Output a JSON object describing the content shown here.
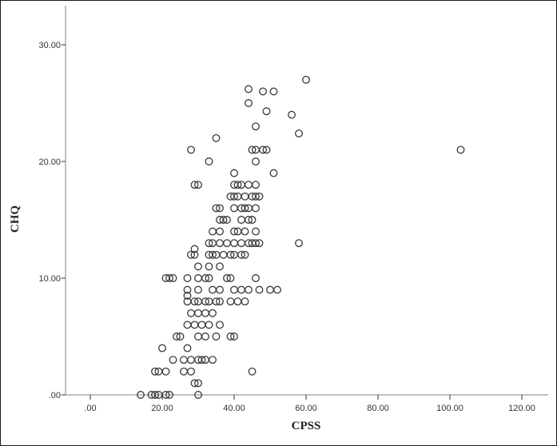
{
  "chart_data": {
    "type": "scatter",
    "title": "",
    "xlabel": "CPSS",
    "ylabel": "CHQ",
    "xlim": [
      -5,
      126
    ],
    "ylim": [
      0,
      33
    ],
    "grid": false,
    "legend": null,
    "x_ticks": [
      0,
      20,
      40,
      60,
      80,
      100,
      120
    ],
    "x_tick_labels": [
      ".00",
      "20.00",
      "40.00",
      "60.00",
      "80.00",
      "100.00",
      "120.00"
    ],
    "y_ticks": [
      0,
      10,
      20,
      30
    ],
    "y_tick_labels": [
      ".00",
      "10.00",
      "20.00",
      "30.00"
    ],
    "marker": "open-circle",
    "points": [
      [
        14,
        0
      ],
      [
        17,
        0
      ],
      [
        18,
        0
      ],
      [
        19,
        0
      ],
      [
        21,
        0
      ],
      [
        22,
        0
      ],
      [
        30,
        0
      ],
      [
        18,
        2
      ],
      [
        19,
        2
      ],
      [
        21,
        2
      ],
      [
        26,
        2
      ],
      [
        28,
        2
      ],
      [
        29,
        1
      ],
      [
        30,
        1
      ],
      [
        45,
        2
      ],
      [
        23,
        3
      ],
      [
        26,
        3
      ],
      [
        28,
        3
      ],
      [
        30,
        3
      ],
      [
        31,
        3
      ],
      [
        32,
        3
      ],
      [
        34,
        3
      ],
      [
        20,
        4
      ],
      [
        27,
        4
      ],
      [
        30,
        5
      ],
      [
        32,
        5
      ],
      [
        24,
        5
      ],
      [
        25,
        5
      ],
      [
        35,
        5
      ],
      [
        39,
        5
      ],
      [
        40,
        5
      ],
      [
        27,
        6
      ],
      [
        29,
        6
      ],
      [
        31,
        6
      ],
      [
        33,
        6
      ],
      [
        36,
        6
      ],
      [
        28,
        7
      ],
      [
        30,
        7
      ],
      [
        32,
        7
      ],
      [
        34,
        7
      ],
      [
        27,
        8
      ],
      [
        29,
        8
      ],
      [
        30,
        8
      ],
      [
        32,
        8
      ],
      [
        33,
        8
      ],
      [
        35,
        8
      ],
      [
        36,
        8
      ],
      [
        39,
        8
      ],
      [
        41,
        8
      ],
      [
        43,
        8
      ],
      [
        27,
        8.5
      ],
      [
        27,
        9
      ],
      [
        30,
        9
      ],
      [
        34,
        9
      ],
      [
        36,
        9
      ],
      [
        40,
        9
      ],
      [
        42,
        9
      ],
      [
        44,
        9
      ],
      [
        47,
        9
      ],
      [
        50,
        9
      ],
      [
        52,
        9
      ],
      [
        21,
        10
      ],
      [
        22,
        10
      ],
      [
        23,
        10
      ],
      [
        27,
        10
      ],
      [
        30,
        10
      ],
      [
        32,
        10
      ],
      [
        33,
        10
      ],
      [
        38,
        10
      ],
      [
        39,
        10
      ],
      [
        46,
        10
      ],
      [
        30,
        11
      ],
      [
        33,
        11
      ],
      [
        36,
        11
      ],
      [
        28,
        12
      ],
      [
        29,
        12
      ],
      [
        33,
        12
      ],
      [
        34,
        12
      ],
      [
        37,
        12
      ],
      [
        39,
        12
      ],
      [
        40,
        12
      ],
      [
        42,
        12
      ],
      [
        43,
        12
      ],
      [
        29,
        12.5
      ],
      [
        35,
        12
      ],
      [
        38,
        13
      ],
      [
        33,
        13
      ],
      [
        34,
        13
      ],
      [
        36,
        13
      ],
      [
        40,
        13
      ],
      [
        42,
        13
      ],
      [
        44,
        13
      ],
      [
        45,
        13
      ],
      [
        46,
        13
      ],
      [
        47,
        13
      ],
      [
        58,
        13
      ],
      [
        34,
        14
      ],
      [
        36,
        14
      ],
      [
        40,
        14
      ],
      [
        41,
        14
      ],
      [
        43,
        14
      ],
      [
        46,
        14
      ],
      [
        36,
        15
      ],
      [
        37,
        15
      ],
      [
        38,
        15
      ],
      [
        42,
        15
      ],
      [
        44,
        15
      ],
      [
        45,
        15
      ],
      [
        35,
        16
      ],
      [
        36,
        16
      ],
      [
        40,
        16
      ],
      [
        42,
        16
      ],
      [
        43,
        16
      ],
      [
        44,
        16
      ],
      [
        46,
        16
      ],
      [
        39,
        17
      ],
      [
        40,
        17
      ],
      [
        41,
        17
      ],
      [
        43,
        17
      ],
      [
        45,
        17
      ],
      [
        46,
        17
      ],
      [
        47,
        17
      ],
      [
        40,
        18
      ],
      [
        41,
        18
      ],
      [
        42,
        18
      ],
      [
        44,
        18
      ],
      [
        46,
        18
      ],
      [
        40,
        19
      ],
      [
        51,
        19
      ],
      [
        29,
        18
      ],
      [
        30,
        18
      ],
      [
        33,
        20
      ],
      [
        46,
        20
      ],
      [
        28,
        21
      ],
      [
        45,
        21
      ],
      [
        46,
        21
      ],
      [
        48,
        21
      ],
      [
        49,
        21
      ],
      [
        35,
        22
      ],
      [
        46,
        23
      ],
      [
        58,
        22.4
      ],
      [
        44,
        25
      ],
      [
        49,
        24.3
      ],
      [
        56,
        24
      ],
      [
        44,
        26.2
      ],
      [
        48,
        26
      ],
      [
        51,
        26
      ],
      [
        60,
        27
      ],
      [
        103,
        21
      ]
    ]
  }
}
